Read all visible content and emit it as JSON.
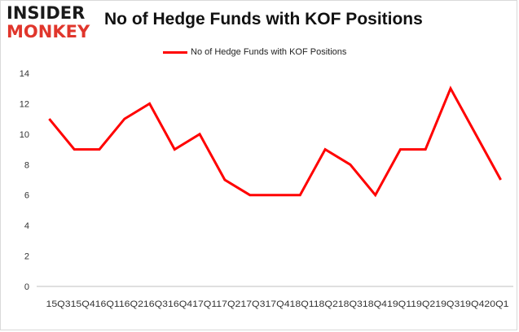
{
  "logo": {
    "line1": "INSIDER",
    "line2": "MONKEY"
  },
  "chart_data": {
    "type": "line",
    "title": "No of Hedge Funds with KOF Positions",
    "xlabel": "",
    "ylabel": "",
    "ylim": [
      0,
      14
    ],
    "yticks": [
      0,
      2,
      4,
      6,
      8,
      10,
      12,
      14
    ],
    "grid": false,
    "legend": "top-center",
    "categories": [
      "15Q3",
      "15Q4",
      "16Q1",
      "16Q2",
      "16Q3",
      "16Q4",
      "17Q1",
      "17Q2",
      "17Q3",
      "17Q4",
      "18Q1",
      "18Q2",
      "18Q3",
      "18Q4",
      "19Q1",
      "19Q2",
      "19Q3",
      "19Q4",
      "20Q1"
    ],
    "x_label_string": "15Q315Q416Q116Q216Q316Q417Q117Q217Q317Q418Q118Q218Q318Q419Q119Q219Q319Q420Q1",
    "series": [
      {
        "name": "No of Hedge Funds with KOF Positions",
        "values": [
          11,
          9,
          9,
          11,
          12,
          9,
          10,
          7,
          6,
          6,
          6,
          9,
          8,
          6,
          9,
          9,
          13,
          10,
          7
        ],
        "color": "#ff0000"
      }
    ]
  }
}
